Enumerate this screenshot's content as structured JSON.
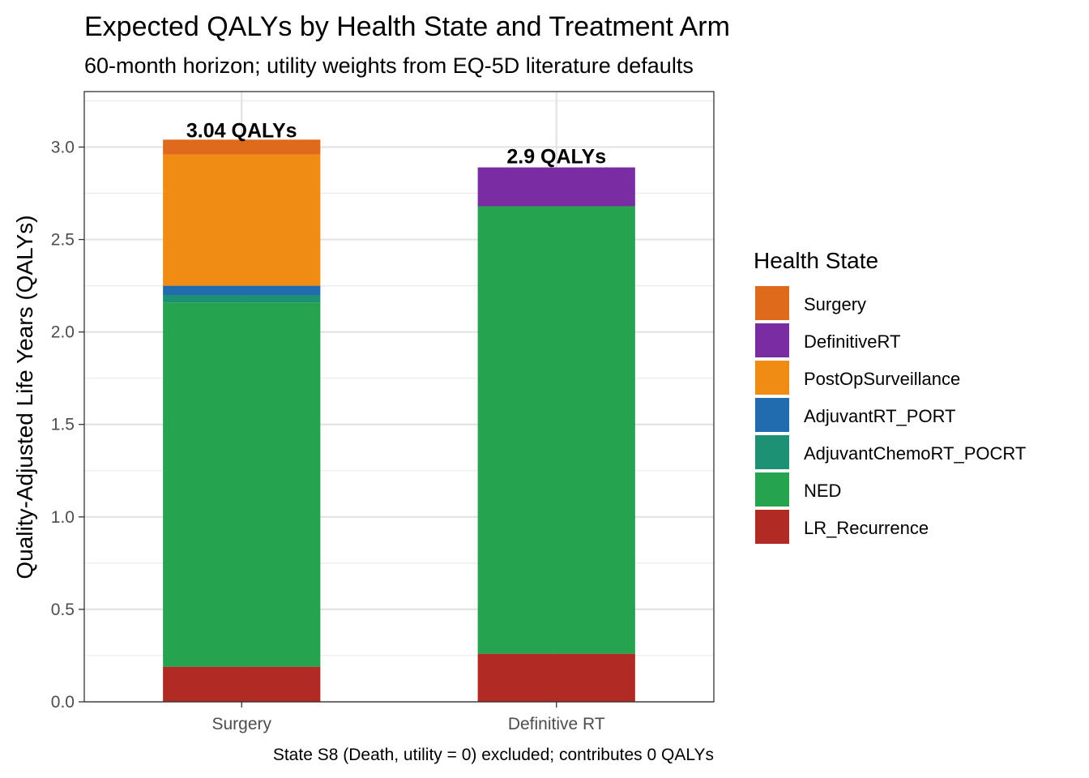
{
  "chart_data": {
    "type": "bar",
    "stacked": true,
    "title": "Expected QALYs by Health State and Treatment Arm",
    "subtitle": "60-month horizon; utility weights from EQ-5D literature defaults",
    "caption": "State S8 (Death, utility = 0) excluded; contributes 0 QALYs",
    "xlabel": "",
    "ylabel": "Quality-Adjusted Life Years (QALYs)",
    "ylim": [
      0,
      3.3
    ],
    "yticks": [
      0.0,
      0.5,
      1.0,
      1.5,
      2.0,
      2.5,
      3.0
    ],
    "ytick_labels": [
      "0.0",
      "0.5",
      "1.0",
      "1.5",
      "2.0",
      "2.5",
      "3.0"
    ],
    "grid": true,
    "categories": [
      "Surgery",
      "Definitive RT"
    ],
    "totals": [
      3.04,
      2.9
    ],
    "total_labels": [
      "3.04 QALYs",
      "2.9 QALYs"
    ],
    "legend": {
      "title": "Health State",
      "position": "right"
    },
    "series": [
      {
        "name": "LR_Recurrence",
        "color": "#B22A24",
        "values": [
          0.19,
          0.26
        ]
      },
      {
        "name": "NED",
        "color": "#26A34F",
        "values": [
          1.97,
          2.42
        ]
      },
      {
        "name": "AdjuvantChemoRT_POCRT",
        "color": "#1C9174",
        "values": [
          0.04,
          0.0
        ]
      },
      {
        "name": "AdjuvantRT_PORT",
        "color": "#216CAF",
        "values": [
          0.05,
          0.0
        ]
      },
      {
        "name": "PostOpSurveillance",
        "color": "#F08C14",
        "values": [
          0.71,
          0.0
        ]
      },
      {
        "name": "DefinitiveRT",
        "color": "#7A2DA3",
        "values": [
          0.0,
          0.21
        ]
      },
      {
        "name": "Surgery",
        "color": "#E06A1B",
        "values": [
          0.08,
          0.0
        ]
      }
    ],
    "legend_order": [
      "Surgery",
      "DefinitiveRT",
      "PostOpSurveillance",
      "AdjuvantRT_PORT",
      "AdjuvantChemoRT_POCRT",
      "NED",
      "LR_Recurrence"
    ]
  }
}
